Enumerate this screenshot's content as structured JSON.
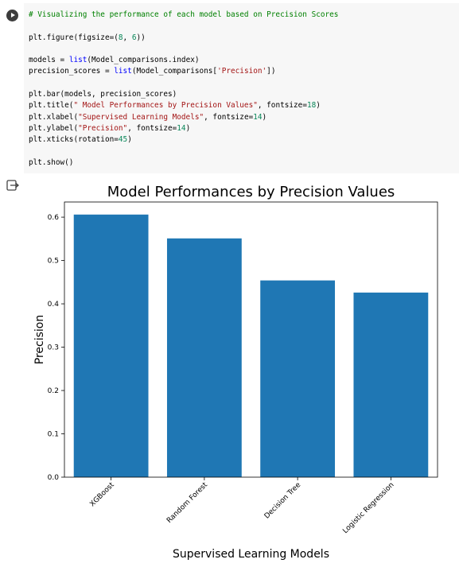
{
  "cell": {
    "code_lines": [
      [
        {
          "t": "# Visualizing the performance of each model based on Precision Scores",
          "c": "com"
        }
      ],
      [],
      [
        {
          "t": "plt.figure(figsize=("
        },
        {
          "t": "8",
          "c": "num"
        },
        {
          "t": ", "
        },
        {
          "t": "6",
          "c": "num"
        },
        {
          "t": "))"
        }
      ],
      [],
      [
        {
          "t": "models = "
        },
        {
          "t": "list",
          "c": "bi"
        },
        {
          "t": "(Model_comparisons.index)"
        }
      ],
      [
        {
          "t": "precision_scores = "
        },
        {
          "t": "list",
          "c": "bi"
        },
        {
          "t": "(Model_comparisons["
        },
        {
          "t": "'Precision'",
          "c": "str"
        },
        {
          "t": "])"
        }
      ],
      [],
      [
        {
          "t": "plt.bar(models, precision_scores)"
        }
      ],
      [
        {
          "t": "plt.title("
        },
        {
          "t": "\" Model Performances by Precision Values\"",
          "c": "str"
        },
        {
          "t": ", fontsize="
        },
        {
          "t": "18",
          "c": "num"
        },
        {
          "t": ")"
        }
      ],
      [
        {
          "t": "plt.xlabel("
        },
        {
          "t": "\"Supervised Learning Models\"",
          "c": "str"
        },
        {
          "t": ", fontsize="
        },
        {
          "t": "14",
          "c": "num"
        },
        {
          "t": ")"
        }
      ],
      [
        {
          "t": "plt.ylabel("
        },
        {
          "t": "\"Precision\"",
          "c": "str"
        },
        {
          "t": ", fontsize="
        },
        {
          "t": "14",
          "c": "num"
        },
        {
          "t": ")"
        }
      ],
      [
        {
          "t": "plt.xticks(rotation="
        },
        {
          "t": "45",
          "c": "num"
        },
        {
          "t": ")"
        }
      ],
      [],
      [
        {
          "t": "plt.show()"
        }
      ]
    ]
  },
  "chart_data": {
    "type": "bar",
    "title": "Model Performances by Precision Values",
    "xlabel": "Supervised Learning Models",
    "ylabel": "Precision",
    "categories": [
      "XGBoost",
      "Random Forest",
      "Decision Tree",
      "Logistic Regression"
    ],
    "values": [
      0.606,
      0.551,
      0.454,
      0.426
    ],
    "ylim": [
      0,
      0.635
    ],
    "yticks": [
      0.0,
      0.1,
      0.2,
      0.3,
      0.4,
      0.5,
      0.6
    ],
    "ytick_labels": [
      "0.0",
      "0.1",
      "0.2",
      "0.3",
      "0.4",
      "0.5",
      "0.6"
    ],
    "xtick_rotation": 45,
    "bar_color": "#1f77b4",
    "grid": false
  }
}
